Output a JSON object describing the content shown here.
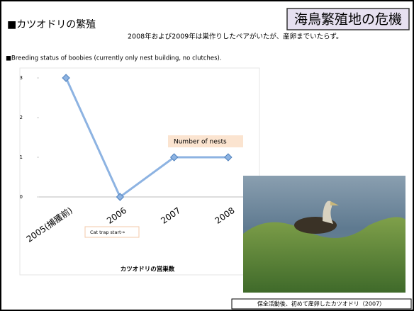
{
  "header": {
    "title": "■カツオドリの繁殖",
    "badge": "海鳥繁殖地の危機",
    "note": "2008年および2009年は巣作りしたペアがいたが、産卵までいたらず。",
    "subtitle": "■Breeding status of boobies (currently only nest building, no clutches)."
  },
  "chart_data": {
    "type": "line",
    "x_label": "カツオドリの営巣数",
    "categories": [
      "2005(捕獲前)",
      "2006",
      "2007",
      "2008"
    ],
    "series": [
      {
        "name": "Number of nests",
        "color": "#8db3e2",
        "values": [
          3,
          0,
          1,
          1
        ]
      }
    ],
    "ylim": [
      0,
      3
    ],
    "yticks": [
      0,
      1,
      2,
      3
    ],
    "grid": false,
    "annotations": [
      "Cat trap start→"
    ]
  },
  "photo": {
    "caption": "保全活動後、初めて産卵したカツオドリ（2007）"
  }
}
